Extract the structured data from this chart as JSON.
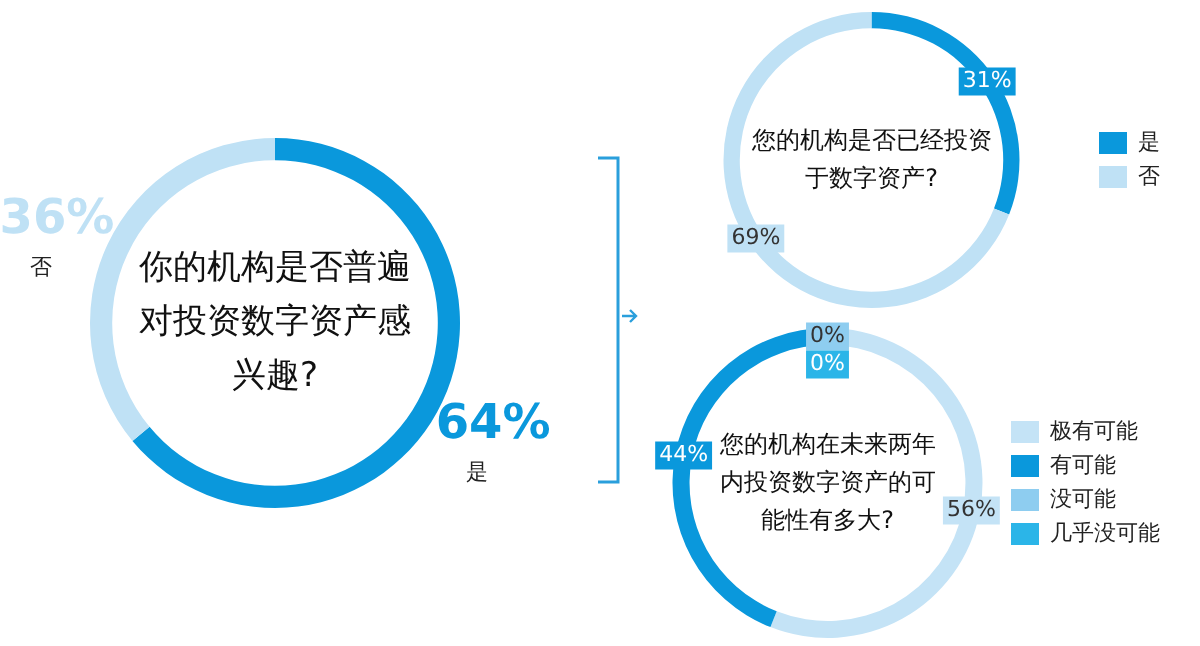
{
  "chart_data": [
    {
      "type": "donut",
      "title": "你的机构是否普遍对投资数字资产感兴趣?",
      "categories": [
        "是",
        "否"
      ],
      "values": [
        64,
        36
      ],
      "colors": [
        "#0a98dc",
        "#bfe1f5"
      ],
      "value_labels": [
        "64%",
        "36%"
      ],
      "legend": false
    },
    {
      "type": "donut",
      "title": "您的机构是否已经投资于数字资产?",
      "categories": [
        "是",
        "否"
      ],
      "values": [
        31,
        69
      ],
      "colors": [
        "#0a98dc",
        "#bfe1f5"
      ],
      "value_labels": [
        "31%",
        "69%"
      ],
      "legend": "right"
    },
    {
      "type": "donut",
      "title": "您的机构在未来两年内投资数字资产的可能性有多大?",
      "categories": [
        "极有可能",
        "有可能",
        "没可能",
        "几乎没可能"
      ],
      "values": [
        56,
        44,
        0,
        0
      ],
      "colors": [
        "#c4e3f6",
        "#0a98dc",
        "#8ecdf0",
        "#2bb5e8"
      ],
      "value_labels": [
        "56%",
        "44%",
        "0%",
        "0%"
      ],
      "legend": "right"
    }
  ]
}
